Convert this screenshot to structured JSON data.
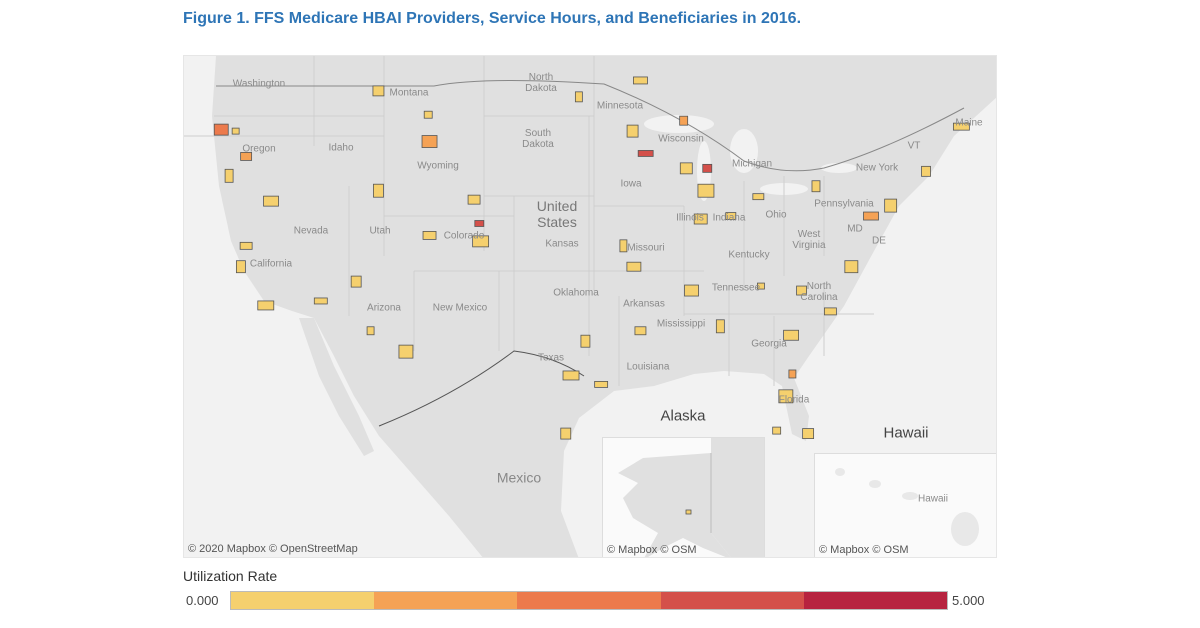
{
  "title": "Figure 1. FFS Medicare HBAI Providers, Service Hours, and Beneficiaries in 2016.",
  "map": {
    "labels": {
      "washington": "Washington",
      "oregon": "Oregon",
      "idaho": "Idaho",
      "montana": "Montana",
      "wyoming": "Wyoming",
      "north_dakota": "North\nDakota",
      "south_dakota": "South\nDakota",
      "minnesota": "Minnesota",
      "wisconsin": "Wisconsin",
      "michigan": "Michigan",
      "iowa": "Iowa",
      "nevada": "Nevada",
      "utah": "Utah",
      "colorado": "Colorado",
      "kansas": "Kansas",
      "missouri": "Missouri",
      "illinois": "Illinois",
      "indiana": "Indiana",
      "ohio": "Ohio",
      "pennsylvania": "Pennsylvania",
      "new_york": "New York",
      "vt": "VT",
      "maine": "Maine",
      "md": "MD",
      "de": "DE",
      "west_virginia": "West\nVirginia",
      "kentucky": "Kentucky",
      "tennessee": "Tennessee",
      "north_carolina": "North\nCarolina",
      "california": "California",
      "arizona": "Arizona",
      "new_mexico": "New Mexico",
      "oklahoma": "Oklahoma",
      "arkansas": "Arkansas",
      "mississippi": "Mississippi",
      "georgia": "Georgia",
      "texas": "Texas",
      "louisiana": "Louisiana",
      "florida": "Florida",
      "united_states": "United\nStates",
      "mexico": "Mexico"
    },
    "credit": "© 2020 Mapbox © OpenStreetMap",
    "alaska": {
      "title": "Alaska",
      "credit": "© Mapbox © OSM"
    },
    "hawaii": {
      "title": "Hawaii",
      "label": "Hawaii",
      "credit": "© Mapbox © OSM"
    },
    "colors": {
      "land": "#e0e0e0",
      "water": "#f2f2f2",
      "border": "#555555"
    }
  },
  "chart_data": {
    "type": "choropleth",
    "measure": "Utilization Rate",
    "color_range": [
      0,
      5
    ],
    "regions": [
      {
        "lon": -123.5,
        "lat": 45.1,
        "level": 0
      },
      {
        "lon": -124.6,
        "lat": 45.2,
        "level": 2
      },
      {
        "lon": -122.7,
        "lat": 43.4,
        "level": 1
      },
      {
        "lon": -124.0,
        "lat": 42.1,
        "level": 0
      },
      {
        "lon": -120.8,
        "lat": 40.4,
        "level": 0
      },
      {
        "lon": -122.7,
        "lat": 37.4,
        "level": 0
      },
      {
        "lon": -123.1,
        "lat": 36.0,
        "level": 0
      },
      {
        "lon": -121.2,
        "lat": 33.4,
        "level": 0
      },
      {
        "lon": -117.0,
        "lat": 33.7,
        "level": 0
      },
      {
        "lon": -114.3,
        "lat": 35.0,
        "level": 0
      },
      {
        "lon": -113.2,
        "lat": 31.7,
        "level": 0
      },
      {
        "lon": -110.5,
        "lat": 30.3,
        "level": 0
      },
      {
        "lon": -112.6,
        "lat": 47.8,
        "level": 0
      },
      {
        "lon": -108.8,
        "lat": 46.2,
        "level": 0
      },
      {
        "lon": -108.7,
        "lat": 44.4,
        "level": 1
      },
      {
        "lon": -105.3,
        "lat": 40.5,
        "level": 0
      },
      {
        "lon": -104.9,
        "lat": 38.9,
        "level": 3
      },
      {
        "lon": -104.8,
        "lat": 37.7,
        "level": 0
      },
      {
        "lon": -108.7,
        "lat": 38.1,
        "level": 0
      },
      {
        "lon": -112.6,
        "lat": 41.1,
        "level": 0
      },
      {
        "lon": -97.3,
        "lat": 47.4,
        "level": 0
      },
      {
        "lon": -92.6,
        "lat": 48.5,
        "level": 0
      },
      {
        "lon": -93.2,
        "lat": 45.1,
        "level": 0
      },
      {
        "lon": -89.3,
        "lat": 45.8,
        "level": 1
      },
      {
        "lon": -92.2,
        "lat": 43.6,
        "level": 3
      },
      {
        "lon": -89.1,
        "lat": 42.6,
        "level": 0
      },
      {
        "lon": -87.5,
        "lat": 42.6,
        "level": 3
      },
      {
        "lon": -87.6,
        "lat": 41.1,
        "level": 0
      },
      {
        "lon": -88.0,
        "lat": 39.2,
        "level": 0
      },
      {
        "lon": -85.7,
        "lat": 39.4,
        "level": 0
      },
      {
        "lon": -93.9,
        "lat": 37.4,
        "level": 0
      },
      {
        "lon": -93.1,
        "lat": 36.0,
        "level": 0
      },
      {
        "lon": -83.6,
        "lat": 40.7,
        "level": 0
      },
      {
        "lon": -79.2,
        "lat": 41.4,
        "level": 0
      },
      {
        "lon": -75.0,
        "lat": 39.4,
        "level": 1
      },
      {
        "lon": -73.5,
        "lat": 40.1,
        "level": 0
      },
      {
        "lon": -70.8,
        "lat": 42.4,
        "level": 0
      },
      {
        "lon": -68.1,
        "lat": 45.4,
        "level": 0
      },
      {
        "lon": -76.5,
        "lat": 36.0,
        "level": 0
      },
      {
        "lon": -80.3,
        "lat": 34.4,
        "level": 0
      },
      {
        "lon": -83.4,
        "lat": 34.7,
        "level": 0
      },
      {
        "lon": -88.7,
        "lat": 34.4,
        "level": 0
      },
      {
        "lon": -92.6,
        "lat": 31.7,
        "level": 0
      },
      {
        "lon": -86.5,
        "lat": 32.0,
        "level": 0
      },
      {
        "lon": -81.1,
        "lat": 31.4,
        "level": 0
      },
      {
        "lon": -78.1,
        "lat": 33.0,
        "level": 0
      },
      {
        "lon": -96.8,
        "lat": 31.0,
        "level": 0
      },
      {
        "lon": -97.9,
        "lat": 28.7,
        "level": 0
      },
      {
        "lon": -95.6,
        "lat": 28.1,
        "level": 0
      },
      {
        "lon": -98.3,
        "lat": 24.8,
        "level": 0
      },
      {
        "lon": -81.0,
        "lat": 28.8,
        "level": 1
      },
      {
        "lon": -81.5,
        "lat": 27.3,
        "level": 0
      },
      {
        "lon": -79.8,
        "lat": 24.8,
        "level": 0
      },
      {
        "lon": -82.2,
        "lat": 25.0,
        "level": 0
      }
    ]
  },
  "legend": {
    "title": "Utilization Rate",
    "min": "0.000",
    "max": "5.000",
    "colors": [
      "#f5d06e",
      "#f5a255",
      "#ec7a4c",
      "#d4504a",
      "#b7233f"
    ]
  }
}
